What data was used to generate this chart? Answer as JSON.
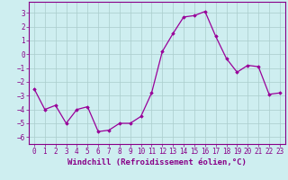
{
  "x": [
    0,
    1,
    2,
    3,
    4,
    5,
    6,
    7,
    8,
    9,
    10,
    11,
    12,
    13,
    14,
    15,
    16,
    17,
    18,
    19,
    20,
    21,
    22,
    23
  ],
  "y": [
    -2.5,
    -4.0,
    -3.7,
    -5.0,
    -4.0,
    -3.8,
    -5.6,
    -5.5,
    -5.0,
    -5.0,
    -4.5,
    -2.8,
    0.2,
    1.5,
    2.7,
    2.8,
    3.1,
    1.3,
    -0.3,
    -1.3,
    -0.8,
    -0.9,
    -2.9,
    -2.8
  ],
  "line_color": "#990099",
  "marker": "D",
  "marker_size": 1.8,
  "bg_color": "#ceeef0",
  "grid_color": "#aacccc",
  "xlabel": "Windchill (Refroidissement éolien,°C)",
  "xlabel_fontsize": 6.5,
  "tick_color": "#880088",
  "xlim": [
    -0.5,
    23.5
  ],
  "ylim": [
    -6.5,
    3.8
  ],
  "yticks": [
    -6,
    -5,
    -4,
    -3,
    -2,
    -1,
    0,
    1,
    2,
    3
  ],
  "xticks": [
    0,
    1,
    2,
    3,
    4,
    5,
    6,
    7,
    8,
    9,
    10,
    11,
    12,
    13,
    14,
    15,
    16,
    17,
    18,
    19,
    20,
    21,
    22,
    23
  ],
  "tick_fontsize": 5.5,
  "linewidth": 0.9
}
